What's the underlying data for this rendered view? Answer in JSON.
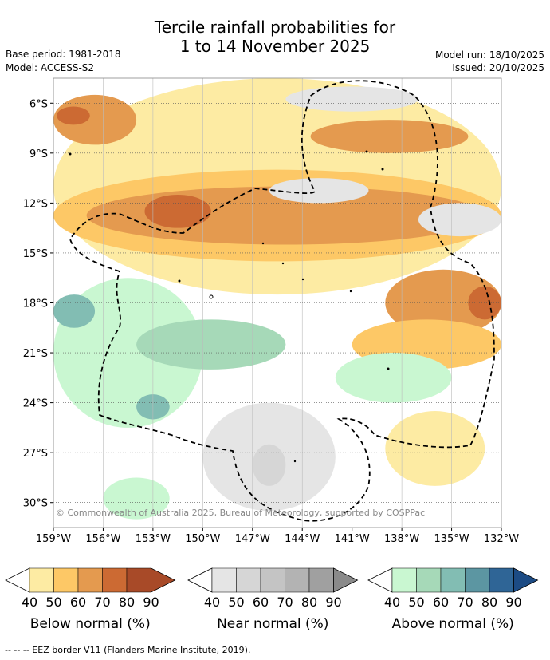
{
  "title_line1": "Tercile rainfall probabilities for",
  "title_line2": "1 to 14 November 2025",
  "base_period": "Base period: 1981-2018",
  "model": "Model: ACCESS-S2",
  "model_run": "Model run: 18/10/2025",
  "issued": "Issued: 20/10/2025",
  "copyright": "© Commonwealth of Australia 2025, Bureau of Meteorology, supported by COSPPac",
  "footer": "--  --  -- EEZ border V11 (Flanders Marine Institute, 2019).",
  "chart_data": {
    "type": "heatmap",
    "title": "Tercile rainfall probabilities for 1 to 14 November 2025",
    "x_ticks": [
      "159°W",
      "156°W",
      "153°W",
      "150°W",
      "147°W",
      "144°W",
      "141°W",
      "138°W",
      "135°W",
      "132°W"
    ],
    "x_values": [
      -159,
      -156,
      -153,
      -150,
      -147,
      -144,
      -141,
      -138,
      -135,
      -132
    ],
    "y_ticks": [
      "6°S",
      "9°S",
      "12°S",
      "15°S",
      "18°S",
      "21°S",
      "24°S",
      "27°S",
      "30°S"
    ],
    "y_values": [
      -6,
      -9,
      -12,
      -15,
      -18,
      -21,
      -24,
      -27,
      -30
    ],
    "lon_range": [
      -159,
      -132
    ],
    "lat_range": [
      -31.5,
      -4.5
    ],
    "regions": [
      {
        "tercile": "below",
        "level": 40,
        "lon": [
          -159,
          -132
        ],
        "lat": [
          -17.5,
          -4.5
        ]
      },
      {
        "tercile": "below",
        "level": 50,
        "lon": [
          -159,
          -132
        ],
        "lat": [
          -15.5,
          -10
        ]
      },
      {
        "tercile": "below",
        "level": 60,
        "lon": [
          -157,
          -133
        ],
        "lat": [
          -14.5,
          -11
        ]
      },
      {
        "tercile": "below",
        "level": 70,
        "lon": [
          -153.5,
          -149.5
        ],
        "lat": [
          -13.5,
          -11.5
        ]
      },
      {
        "tercile": "below",
        "level": 60,
        "lon": [
          -159,
          -154
        ],
        "lat": [
          -8.5,
          -5.5
        ]
      },
      {
        "tercile": "below",
        "level": 70,
        "lon": [
          -158.8,
          -156.8
        ],
        "lat": [
          -7.3,
          -6.2
        ]
      },
      {
        "tercile": "below",
        "level": 60,
        "lon": [
          -143.5,
          -134
        ],
        "lat": [
          -9,
          -7
        ]
      },
      {
        "tercile": "below",
        "level": 60,
        "lon": [
          -139,
          -132
        ],
        "lat": [
          -20,
          -16
        ]
      },
      {
        "tercile": "below",
        "level": 70,
        "lon": [
          -134,
          -132
        ],
        "lat": [
          -19,
          -17
        ]
      },
      {
        "tercile": "below",
        "level": 50,
        "lon": [
          -141,
          -132
        ],
        "lat": [
          -22,
          -19
        ]
      },
      {
        "tercile": "below",
        "level": 40,
        "lon": [
          -139,
          -133
        ],
        "lat": [
          -29,
          -24.5
        ]
      },
      {
        "tercile": "near",
        "level": 40,
        "lon": [
          -145,
          -137
        ],
        "lat": [
          -6.5,
          -5
        ]
      },
      {
        "tercile": "near",
        "level": 40,
        "lon": [
          -146,
          -140
        ],
        "lat": [
          -12,
          -10.5
        ]
      },
      {
        "tercile": "near",
        "level": 40,
        "lon": [
          -150,
          -142
        ],
        "lat": [
          -30.5,
          -24
        ]
      },
      {
        "tercile": "near",
        "level": 40,
        "lon": [
          -137,
          -132
        ],
        "lat": [
          -14,
          -12
        ]
      },
      {
        "tercile": "near",
        "level": 50,
        "lon": [
          -147,
          -145
        ],
        "lat": [
          -29,
          -26.5
        ]
      },
      {
        "tercile": "above",
        "level": 40,
        "lon": [
          -159,
          -150
        ],
        "lat": [
          -25.5,
          -16.5
        ]
      },
      {
        "tercile": "above",
        "level": 50,
        "lon": [
          -154,
          -145
        ],
        "lat": [
          -22,
          -19
        ]
      },
      {
        "tercile": "above",
        "level": 60,
        "lon": [
          -159,
          -156.5
        ],
        "lat": [
          -19.5,
          -17.5
        ]
      },
      {
        "tercile": "above",
        "level": 60,
        "lon": [
          -154,
          -152
        ],
        "lat": [
          -25,
          -23.5
        ]
      },
      {
        "tercile": "above",
        "level": 40,
        "lon": [
          -142,
          -135
        ],
        "lat": [
          -24,
          -21
        ]
      },
      {
        "tercile": "above",
        "level": 40,
        "lon": [
          -156,
          -152
        ],
        "lat": [
          -31,
          -28.5
        ]
      }
    ]
  },
  "legends": [
    {
      "label": "Below normal (%)",
      "ticks": [
        "40",
        "50",
        "60",
        "70",
        "80",
        "90"
      ],
      "colors": [
        "#fdeba3",
        "#fdc866",
        "#e49a4f",
        "#cc6a33",
        "#a84a28",
        "#a84a28"
      ]
    },
    {
      "label": "Near normal (%)",
      "ticks": [
        "40",
        "50",
        "60",
        "70",
        "80",
        "90"
      ],
      "colors": [
        "#e5e5e5",
        "#d6d6d6",
        "#c4c4c4",
        "#b3b3b3",
        "#a0a0a0",
        "#8a8a8a"
      ]
    },
    {
      "label": "Above normal (%)",
      "ticks": [
        "40",
        "50",
        "60",
        "70",
        "80",
        "90"
      ],
      "colors": [
        "#c9f7d1",
        "#a6d9b8",
        "#82bdb3",
        "#5c96a2",
        "#2f6596",
        "#1c4b84"
      ]
    }
  ]
}
